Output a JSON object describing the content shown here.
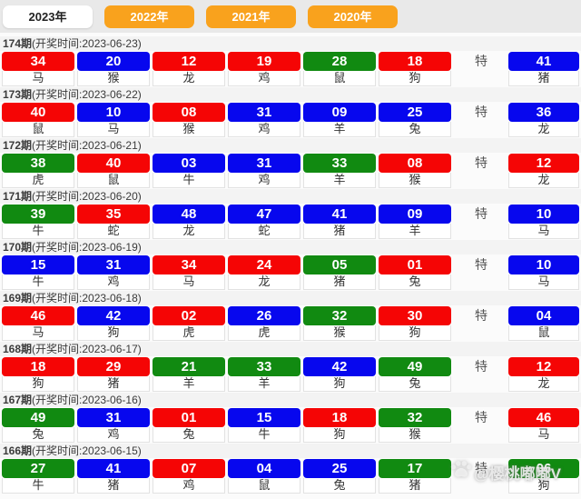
{
  "tabs": [
    {
      "label": "2023年",
      "active": true
    },
    {
      "label": "2022年",
      "active": false
    },
    {
      "label": "2021年",
      "active": false
    },
    {
      "label": "2020年",
      "active": false
    }
  ],
  "te_label": "特",
  "colors": {
    "red": "#f50505",
    "blue": "#0707ee",
    "green": "#118a11",
    "tab_orange": "#f9a21d"
  },
  "watermark": {
    "icon": "paw-icon",
    "text": "@樱桃嘟嘟V"
  },
  "rows": [
    {
      "period": "174期",
      "draw_time_label": "(开奖时间:2023-06-23)",
      "balls": [
        {
          "num": "34",
          "color": "red",
          "zodiac": "马"
        },
        {
          "num": "20",
          "color": "blue",
          "zodiac": "猴"
        },
        {
          "num": "12",
          "color": "red",
          "zodiac": "龙"
        },
        {
          "num": "19",
          "color": "red",
          "zodiac": "鸡"
        },
        {
          "num": "28",
          "color": "green",
          "zodiac": "鼠"
        },
        {
          "num": "18",
          "color": "red",
          "zodiac": "狗"
        }
      ],
      "special": {
        "num": "41",
        "color": "blue",
        "zodiac": "猪"
      }
    },
    {
      "period": "173期",
      "draw_time_label": "(开奖时间:2023-06-22)",
      "balls": [
        {
          "num": "40",
          "color": "red",
          "zodiac": "鼠"
        },
        {
          "num": "10",
          "color": "blue",
          "zodiac": "马"
        },
        {
          "num": "08",
          "color": "red",
          "zodiac": "猴"
        },
        {
          "num": "31",
          "color": "blue",
          "zodiac": "鸡"
        },
        {
          "num": "09",
          "color": "blue",
          "zodiac": "羊"
        },
        {
          "num": "25",
          "color": "blue",
          "zodiac": "兔"
        }
      ],
      "special": {
        "num": "36",
        "color": "blue",
        "zodiac": "龙"
      }
    },
    {
      "period": "172期",
      "draw_time_label": "(开奖时间:2023-06-21)",
      "balls": [
        {
          "num": "38",
          "color": "green",
          "zodiac": "虎"
        },
        {
          "num": "40",
          "color": "red",
          "zodiac": "鼠"
        },
        {
          "num": "03",
          "color": "blue",
          "zodiac": "牛"
        },
        {
          "num": "31",
          "color": "blue",
          "zodiac": "鸡"
        },
        {
          "num": "33",
          "color": "green",
          "zodiac": "羊"
        },
        {
          "num": "08",
          "color": "red",
          "zodiac": "猴"
        }
      ],
      "special": {
        "num": "12",
        "color": "red",
        "zodiac": "龙"
      }
    },
    {
      "period": "171期",
      "draw_time_label": "(开奖时间:2023-06-20)",
      "balls": [
        {
          "num": "39",
          "color": "green",
          "zodiac": "牛"
        },
        {
          "num": "35",
          "color": "red",
          "zodiac": "蛇"
        },
        {
          "num": "48",
          "color": "blue",
          "zodiac": "龙"
        },
        {
          "num": "47",
          "color": "blue",
          "zodiac": "蛇"
        },
        {
          "num": "41",
          "color": "blue",
          "zodiac": "猪"
        },
        {
          "num": "09",
          "color": "blue",
          "zodiac": "羊"
        }
      ],
      "special": {
        "num": "10",
        "color": "blue",
        "zodiac": "马"
      }
    },
    {
      "period": "170期",
      "draw_time_label": "(开奖时间:2023-06-19)",
      "balls": [
        {
          "num": "15",
          "color": "blue",
          "zodiac": "牛"
        },
        {
          "num": "31",
          "color": "blue",
          "zodiac": "鸡"
        },
        {
          "num": "34",
          "color": "red",
          "zodiac": "马"
        },
        {
          "num": "24",
          "color": "red",
          "zodiac": "龙"
        },
        {
          "num": "05",
          "color": "green",
          "zodiac": "猪"
        },
        {
          "num": "01",
          "color": "red",
          "zodiac": "兔"
        }
      ],
      "special": {
        "num": "10",
        "color": "blue",
        "zodiac": "马"
      }
    },
    {
      "period": "169期",
      "draw_time_label": "(开奖时间:2023-06-18)",
      "balls": [
        {
          "num": "46",
          "color": "red",
          "zodiac": "马"
        },
        {
          "num": "42",
          "color": "blue",
          "zodiac": "狗"
        },
        {
          "num": "02",
          "color": "red",
          "zodiac": "虎"
        },
        {
          "num": "26",
          "color": "blue",
          "zodiac": "虎"
        },
        {
          "num": "32",
          "color": "green",
          "zodiac": "猴"
        },
        {
          "num": "30",
          "color": "red",
          "zodiac": "狗"
        }
      ],
      "special": {
        "num": "04",
        "color": "blue",
        "zodiac": "鼠"
      }
    },
    {
      "period": "168期",
      "draw_time_label": "(开奖时间:2023-06-17)",
      "balls": [
        {
          "num": "18",
          "color": "red",
          "zodiac": "狗"
        },
        {
          "num": "29",
          "color": "red",
          "zodiac": "猪"
        },
        {
          "num": "21",
          "color": "green",
          "zodiac": "羊"
        },
        {
          "num": "33",
          "color": "green",
          "zodiac": "羊"
        },
        {
          "num": "42",
          "color": "blue",
          "zodiac": "狗"
        },
        {
          "num": "49",
          "color": "green",
          "zodiac": "兔"
        }
      ],
      "special": {
        "num": "12",
        "color": "red",
        "zodiac": "龙"
      }
    },
    {
      "period": "167期",
      "draw_time_label": "(开奖时间:2023-06-16)",
      "balls": [
        {
          "num": "49",
          "color": "green",
          "zodiac": "兔"
        },
        {
          "num": "31",
          "color": "blue",
          "zodiac": "鸡"
        },
        {
          "num": "01",
          "color": "red",
          "zodiac": "兔"
        },
        {
          "num": "15",
          "color": "blue",
          "zodiac": "牛"
        },
        {
          "num": "18",
          "color": "red",
          "zodiac": "狗"
        },
        {
          "num": "32",
          "color": "green",
          "zodiac": "猴"
        }
      ],
      "special": {
        "num": "46",
        "color": "red",
        "zodiac": "马"
      }
    },
    {
      "period": "166期",
      "draw_time_label": "(开奖时间:2023-06-15)",
      "balls": [
        {
          "num": "27",
          "color": "green",
          "zodiac": "牛"
        },
        {
          "num": "41",
          "color": "blue",
          "zodiac": "猪"
        },
        {
          "num": "07",
          "color": "red",
          "zodiac": "鸡"
        },
        {
          "num": "04",
          "color": "blue",
          "zodiac": "鼠"
        },
        {
          "num": "25",
          "color": "blue",
          "zodiac": "兔"
        },
        {
          "num": "17",
          "color": "green",
          "zodiac": "猪"
        }
      ],
      "special": {
        "num": "06",
        "color": "green",
        "zodiac": "狗"
      }
    }
  ]
}
